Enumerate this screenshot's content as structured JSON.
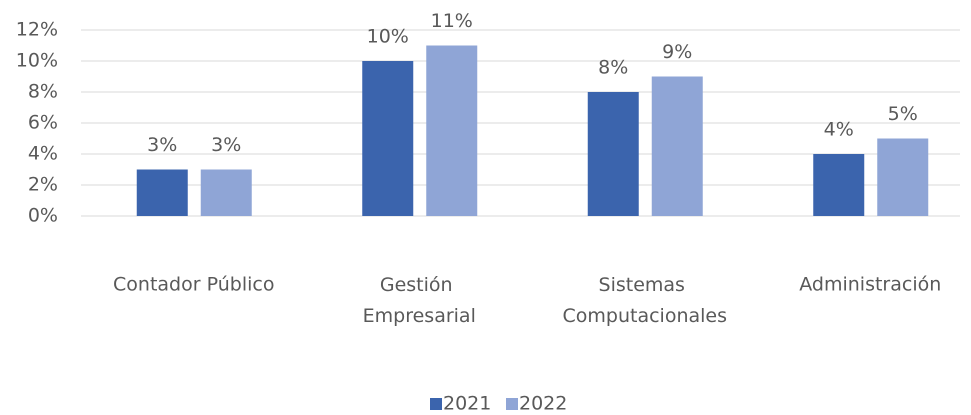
{
  "chart_data": {
    "type": "bar",
    "categories": [
      "Contador Público",
      "Gestión Empresarial",
      "Sistemas Computacionales",
      "Administración"
    ],
    "series": [
      {
        "name": "2021",
        "color": "#3b64ad",
        "values": [
          3,
          10,
          8,
          4
        ],
        "value_labels": [
          "3%",
          "10%",
          "8%",
          "4%"
        ]
      },
      {
        "name": "2022",
        "color": "#8fa5d6",
        "values": [
          3,
          11,
          9,
          5
        ],
        "value_labels": [
          "3%",
          "11%",
          "9%",
          "5%"
        ]
      }
    ],
    "ylim": [
      0,
      12
    ],
    "yticks": [
      {
        "value": 0,
        "label": "0%"
      },
      {
        "value": 2,
        "label": "2%"
      },
      {
        "value": 4,
        "label": "4%"
      },
      {
        "value": 6,
        "label": "6%"
      },
      {
        "value": 8,
        "label": "8%"
      },
      {
        "value": 10,
        "label": "10%"
      },
      {
        "value": 12,
        "label": "12%"
      }
    ],
    "grid": true,
    "legend": "bottom"
  }
}
